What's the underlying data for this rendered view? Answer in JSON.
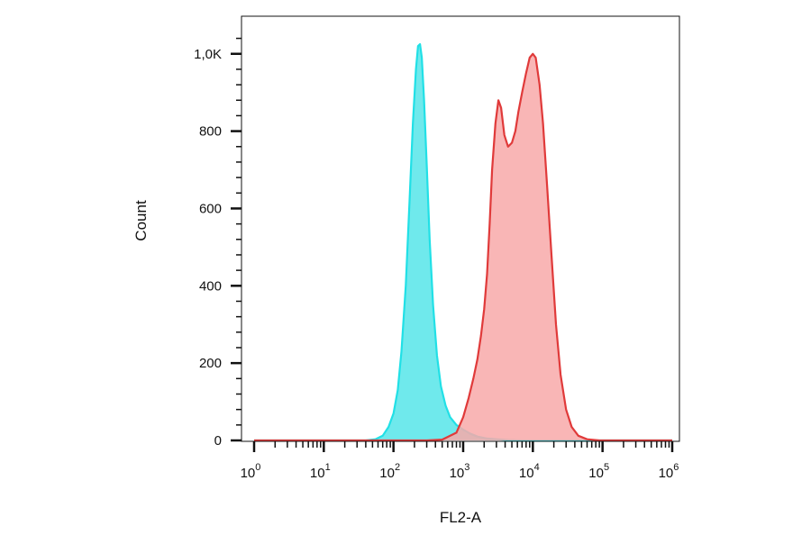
{
  "chart_data": {
    "type": "area",
    "xlabel": "FL2-A",
    "ylabel": "Count",
    "x_scale": "log",
    "xlim": [
      1,
      1000000
    ],
    "ylim": [
      0,
      1060
    ],
    "grid": false,
    "legend": "none",
    "x_ticks": [
      {
        "base": "10",
        "exp": "0"
      },
      {
        "base": "10",
        "exp": "1"
      },
      {
        "base": "10",
        "exp": "2"
      },
      {
        "base": "10",
        "exp": "3"
      },
      {
        "base": "10",
        "exp": "4"
      },
      {
        "base": "10",
        "exp": "5"
      },
      {
        "base": "10",
        "exp": "6"
      }
    ],
    "y_ticks": [
      {
        "value": 0,
        "label": "0"
      },
      {
        "value": 200,
        "label": "200"
      },
      {
        "value": 400,
        "label": "400"
      },
      {
        "value": 600,
        "label": "600"
      },
      {
        "value": 800,
        "label": "800"
      },
      {
        "value": 1000,
        "label": "1,0K"
      }
    ],
    "series": [
      {
        "color": "#21e0e6",
        "fill": "#6fe9ec",
        "points": [
          [
            1,
            0
          ],
          [
            40,
            0
          ],
          [
            55,
            3
          ],
          [
            70,
            12
          ],
          [
            85,
            35
          ],
          [
            100,
            70
          ],
          [
            115,
            130
          ],
          [
            130,
            230
          ],
          [
            150,
            400
          ],
          [
            170,
            620
          ],
          [
            190,
            820
          ],
          [
            210,
            960
          ],
          [
            225,
            1020
          ],
          [
            240,
            1025
          ],
          [
            255,
            990
          ],
          [
            275,
            880
          ],
          [
            300,
            710
          ],
          [
            330,
            520
          ],
          [
            370,
            350
          ],
          [
            420,
            220
          ],
          [
            480,
            140
          ],
          [
            560,
            90
          ],
          [
            650,
            60
          ],
          [
            800,
            40
          ],
          [
            1000,
            28
          ],
          [
            1250,
            18
          ],
          [
            1600,
            10
          ],
          [
            2200,
            5
          ],
          [
            3000,
            3
          ],
          [
            4500,
            1
          ],
          [
            7000,
            0
          ],
          [
            1000000,
            0
          ]
        ]
      },
      {
        "color": "#e03a3a",
        "fill": "#f8a9a9",
        "points": [
          [
            1,
            0
          ],
          [
            300,
            0
          ],
          [
            500,
            2
          ],
          [
            800,
            20
          ],
          [
            1000,
            60
          ],
          [
            1200,
            110
          ],
          [
            1400,
            160
          ],
          [
            1600,
            210
          ],
          [
            1800,
            270
          ],
          [
            2000,
            340
          ],
          [
            2200,
            430
          ],
          [
            2400,
            560
          ],
          [
            2600,
            700
          ],
          [
            2900,
            820
          ],
          [
            3200,
            880
          ],
          [
            3500,
            860
          ],
          [
            3900,
            790
          ],
          [
            4400,
            760
          ],
          [
            5000,
            770
          ],
          [
            5600,
            800
          ],
          [
            6200,
            850
          ],
          [
            7000,
            900
          ],
          [
            8000,
            950
          ],
          [
            9000,
            990
          ],
          [
            10000,
            1000
          ],
          [
            11000,
            990
          ],
          [
            12500,
            920
          ],
          [
            14000,
            820
          ],
          [
            16000,
            660
          ],
          [
            18500,
            480
          ],
          [
            21500,
            300
          ],
          [
            25000,
            170
          ],
          [
            30000,
            80
          ],
          [
            36000,
            35
          ],
          [
            45000,
            12
          ],
          [
            60000,
            3
          ],
          [
            90000,
            0
          ],
          [
            1000000,
            0
          ]
        ]
      }
    ]
  }
}
